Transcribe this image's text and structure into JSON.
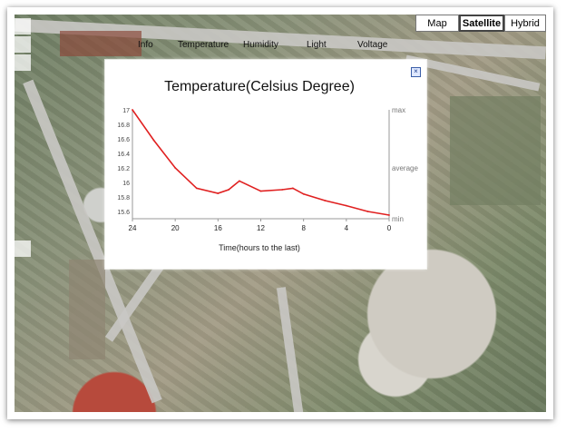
{
  "map": {
    "types": [
      {
        "label": "Map",
        "active": false
      },
      {
        "label": "Satellite",
        "active": true
      },
      {
        "label": "Hybrid",
        "active": false
      }
    ]
  },
  "tabs": [
    {
      "label": "Info"
    },
    {
      "label": "Temperature"
    },
    {
      "label": "Humidity"
    },
    {
      "label": "Light"
    },
    {
      "label": "Voltage"
    }
  ],
  "popup": {
    "close_symbol": "×"
  },
  "chart_data": {
    "type": "line",
    "title": "Temperature(Celsius Degree)",
    "xlabel": "Time(hours to the last)",
    "ylabel": "",
    "x": [
      24,
      22,
      20,
      18,
      16,
      15,
      14,
      12,
      10,
      9,
      8,
      6,
      4,
      2,
      0
    ],
    "y": [
      17.0,
      16.58,
      16.2,
      15.92,
      15.85,
      15.9,
      16.02,
      15.88,
      15.9,
      15.92,
      15.84,
      15.75,
      15.68,
      15.6,
      15.55
    ],
    "xlim": [
      24,
      0
    ],
    "ylim": [
      15.5,
      17.0
    ],
    "x_ticks": [
      "24",
      "20",
      "16",
      "12",
      "8",
      "4",
      "0"
    ],
    "x_tick_values": [
      24,
      20,
      16,
      12,
      8,
      4,
      0
    ],
    "y_ticks": [
      "17",
      "16.8",
      "16.6",
      "16.4",
      "16.2",
      "16",
      "15.8",
      "15.6"
    ],
    "y_tick_values": [
      17.0,
      16.8,
      16.6,
      16.4,
      16.2,
      16.0,
      15.8,
      15.6
    ],
    "right_labels": [
      "max",
      "average",
      "min"
    ],
    "right_label_values": [
      17.0,
      16.2,
      15.5
    ],
    "line_color": "#e02020"
  }
}
